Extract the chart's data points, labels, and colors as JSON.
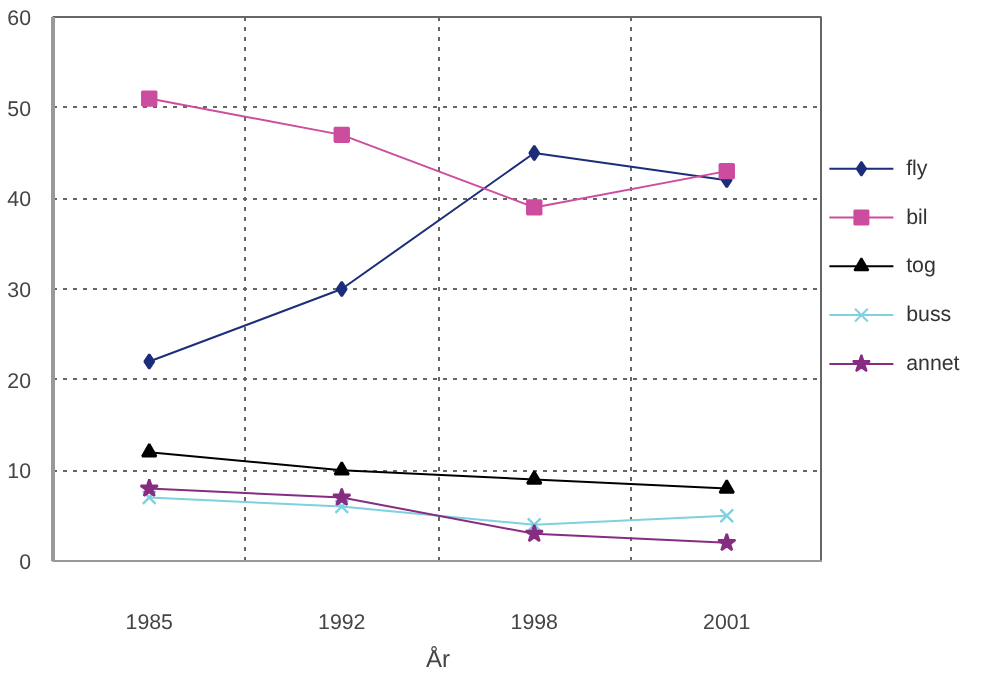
{
  "chart_data": {
    "type": "line",
    "xlabel": "År",
    "categories": [
      "1985",
      "1992",
      "1998",
      "2001"
    ],
    "ylim": [
      0,
      60
    ],
    "yticks": [
      0,
      10,
      20,
      30,
      40,
      50,
      60
    ],
    "grid": true,
    "legend": "right",
    "series": [
      {
        "name": "fly",
        "color": "#1c2d7a",
        "marker": "diamond",
        "values": [
          22,
          30,
          45,
          42
        ]
      },
      {
        "name": "bil",
        "color": "#cc4c9e",
        "marker": "square",
        "values": [
          51,
          47,
          39,
          43
        ]
      },
      {
        "name": "tog",
        "color": "#000000",
        "marker": "triangle",
        "values": [
          12,
          10,
          9,
          8
        ]
      },
      {
        "name": "buss",
        "color": "#7fd0e0",
        "marker": "cross",
        "values": [
          7,
          6,
          4,
          5
        ]
      },
      {
        "name": "annet",
        "color": "#862d82",
        "marker": "star",
        "values": [
          8,
          7,
          3,
          2
        ]
      }
    ]
  }
}
